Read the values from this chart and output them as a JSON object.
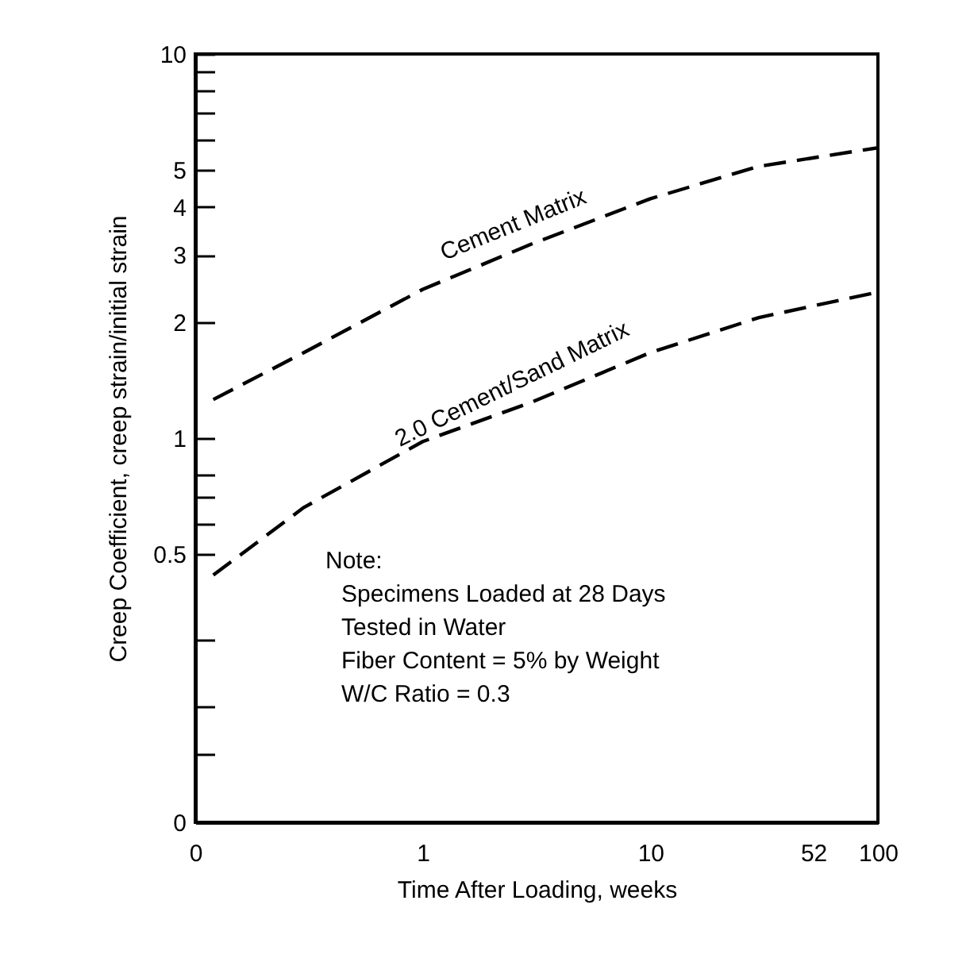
{
  "chart_data": {
    "type": "line",
    "xlabel": "Time After Loading, weeks",
    "ylabel": "Creep Coefficient, creep strain/initial strain",
    "log": "xy",
    "xlim": [
      0.1,
      100
    ],
    "xticks": [
      {
        "value": 0.1,
        "label": "0"
      },
      1,
      10,
      52,
      100
    ],
    "ylim": [
      0.1,
      10
    ],
    "yticks": [
      {
        "value": 0.1,
        "label": "0"
      },
      {
        "value": 0.15,
        "label": null
      },
      {
        "value": 0.2,
        "label": null
      },
      {
        "value": 0.3,
        "label": null
      },
      0.5,
      {
        "value": 0.6,
        "label": null
      },
      {
        "value": 0.7,
        "label": null
      },
      {
        "value": 0.8,
        "label": null
      },
      1,
      2,
      3,
      4,
      5,
      {
        "value": 6,
        "label": null
      },
      {
        "value": 7,
        "label": null
      },
      {
        "value": 8,
        "label": null
      },
      {
        "value": 9,
        "label": null
      },
      10
    ],
    "x": [
      0.12,
      0.3,
      1,
      3,
      10,
      30,
      100
    ],
    "line_style": "dashed",
    "grid": false,
    "series": [
      {
        "name": "Cement Matrix",
        "color": "#000000",
        "values": [
          1.26,
          1.67,
          2.44,
          3.2,
          4.2,
          5.1,
          5.7
        ]
      },
      {
        "name": "2.0 Cement/Sand Matrix",
        "color": "#000000",
        "values": [
          0.44,
          0.66,
          0.98,
          1.24,
          1.67,
          2.06,
          2.4
        ]
      }
    ],
    "annotations": [
      "Note:",
      "Specimens Loaded at 28 Days",
      "Tested in Water",
      "Fiber Content = 5% by Weight",
      "W/C Ratio = 0.3"
    ]
  }
}
